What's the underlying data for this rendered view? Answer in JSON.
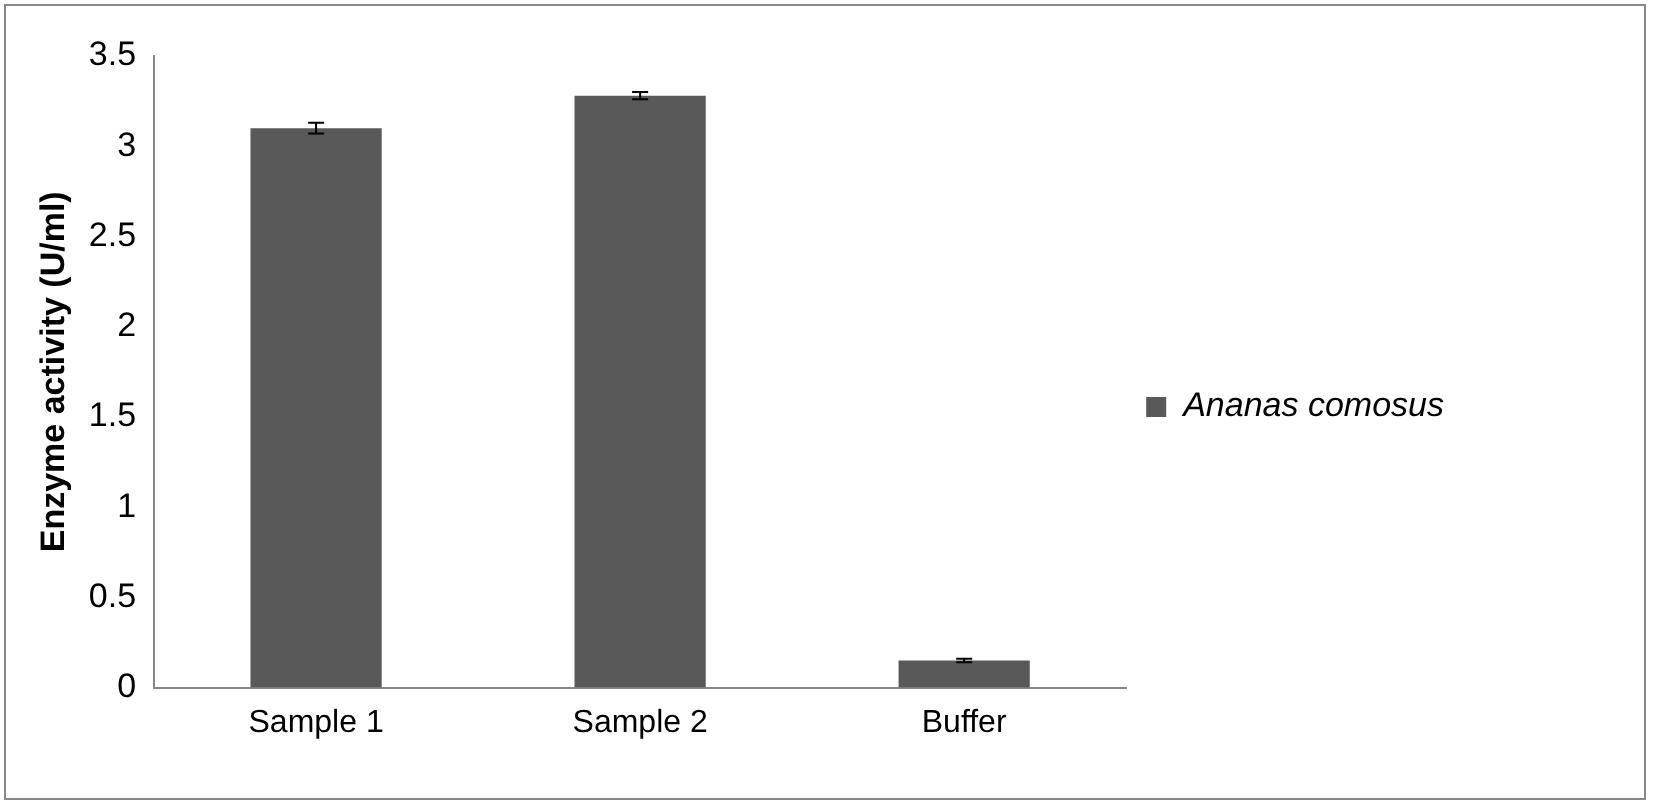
{
  "chart_data": {
    "type": "bar",
    "ylabel": "Enzyme activity (U/ml)",
    "categories": [
      "Sample 1",
      "Sample 2",
      "Buffer"
    ],
    "series": [
      {
        "name": "Ananas comosus",
        "color": "#595959",
        "values": [
          3.1,
          3.28,
          0.15
        ],
        "errors": [
          0.03,
          0.02,
          0.01
        ]
      }
    ],
    "ylim": [
      0,
      3.5
    ],
    "yticks": [
      0,
      0.5,
      1,
      1.5,
      2,
      2.5,
      3,
      3.5
    ],
    "grid": false,
    "legend": "right"
  }
}
